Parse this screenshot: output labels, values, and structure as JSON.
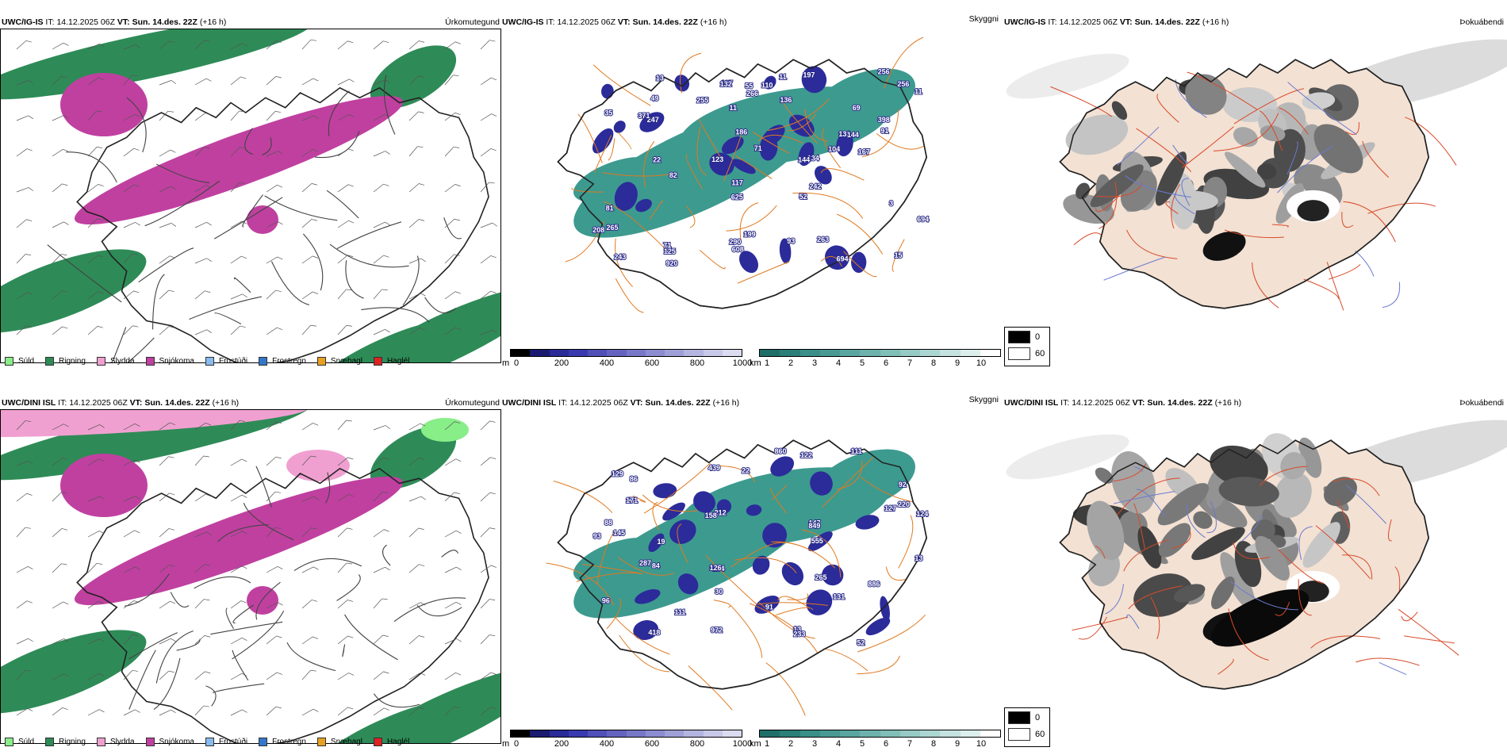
{
  "rows": [
    {
      "model": "UWC/IG-IS",
      "it_label": "IT:",
      "it_value": "14.12.2025 06Z",
      "vt_label": "VT:",
      "vt_value": "Sun. 14.des. 22Z",
      "lead": "(+16 h)",
      "precip_type_title": "Úrkomutegund",
      "cloud_title": "Skyggni",
      "fog_title": "Þokuábendi",
      "cloud_numbers": [
        "197",
        "167",
        "139",
        "110",
        "69",
        "134",
        "81",
        "91",
        "144",
        "136",
        "107",
        "186",
        "290",
        "263",
        "694",
        "256",
        "243",
        "694",
        "11",
        "3",
        "35",
        "82",
        "71",
        "920",
        "104",
        "22",
        "144",
        "49",
        "255",
        "11",
        "11",
        "71",
        "132",
        "625",
        "125",
        "608",
        "256",
        "242",
        "208",
        "52",
        "398",
        "266",
        "265",
        "247",
        "371",
        "199",
        "15",
        "123",
        "13",
        "117",
        "55",
        "93"
      ]
    },
    {
      "model": "UWC/DINI ISL",
      "it_label": "IT:",
      "it_value": "14.12.2025 06Z",
      "vt_label": "VT:",
      "vt_value": "Sun. 14.des. 22Z",
      "lead": "(+16 h)",
      "precip_type_title": "Úrkomutegund",
      "cloud_title": "Skyggni",
      "fog_title": "Þokuábendi",
      "cloud_numbers": [
        "212",
        "131",
        "134",
        "88",
        "126",
        "127",
        "92",
        "124",
        "886",
        "439",
        "220",
        "860",
        "555",
        "91",
        "30",
        "84",
        "86",
        "122",
        "111",
        "96",
        "147",
        "19",
        "13",
        "111",
        "972",
        "418",
        "158",
        "145",
        "129",
        "265",
        "849",
        "233",
        "171",
        "22",
        "287",
        "13",
        "52",
        "93"
      ]
    }
  ],
  "precip_legend": [
    {
      "label": "Súld",
      "color": "#88ee88"
    },
    {
      "label": "Rigning",
      "color": "#2e8b57"
    },
    {
      "label": "Slydda",
      "color": "#f0a0d0"
    },
    {
      "label": "Snjókoma",
      "color": "#c040a0"
    },
    {
      "label": "Frostúði",
      "color": "#88bbee"
    },
    {
      "label": "Frostregn",
      "color": "#3377cc"
    },
    {
      "label": "Snæhagl",
      "color": "#e8a020"
    },
    {
      "label": "Haglél",
      "color": "#dd2222"
    }
  ],
  "ceiling_bar": {
    "unit": "m",
    "ticks": [
      "0",
      "200",
      "400",
      "600",
      "800",
      "1000"
    ],
    "colors": [
      "#000000",
      "#1a1a70",
      "#2a2a98",
      "#3a3ab0",
      "#5050b8",
      "#6464c0",
      "#7878c8",
      "#8c8cd0",
      "#a0a0d8",
      "#b4b4e0",
      "#c8c8e8",
      "#dcdcf0"
    ]
  },
  "vis_bar": {
    "unit": "km",
    "ticks": [
      "1",
      "2",
      "3",
      "4",
      "5",
      "6",
      "7",
      "8",
      "9",
      "10"
    ],
    "colors": [
      "#1f6f68",
      "#2a7f78",
      "#3a8f88",
      "#4a9a94",
      "#5aa6a0",
      "#6db2ac",
      "#80beb8",
      "#96cac5",
      "#acd6d2",
      "#c4e2df",
      "#dcefed",
      "#ffffff"
    ]
  },
  "fog_legend": [
    {
      "label": "0",
      "color": "#000000"
    },
    {
      "label": "60",
      "color": "#ffffff"
    }
  ],
  "colors": {
    "rain": "#2e8b57",
    "snow": "#c040a0",
    "drizzle": "#88ee88",
    "sleet": "#f0a0d0",
    "teal": "#3d9a8f",
    "navy": "#2b2b9a",
    "road": "#e07a20",
    "land_fog": "#f3e1d3",
    "fog_dark": "#222222"
  }
}
